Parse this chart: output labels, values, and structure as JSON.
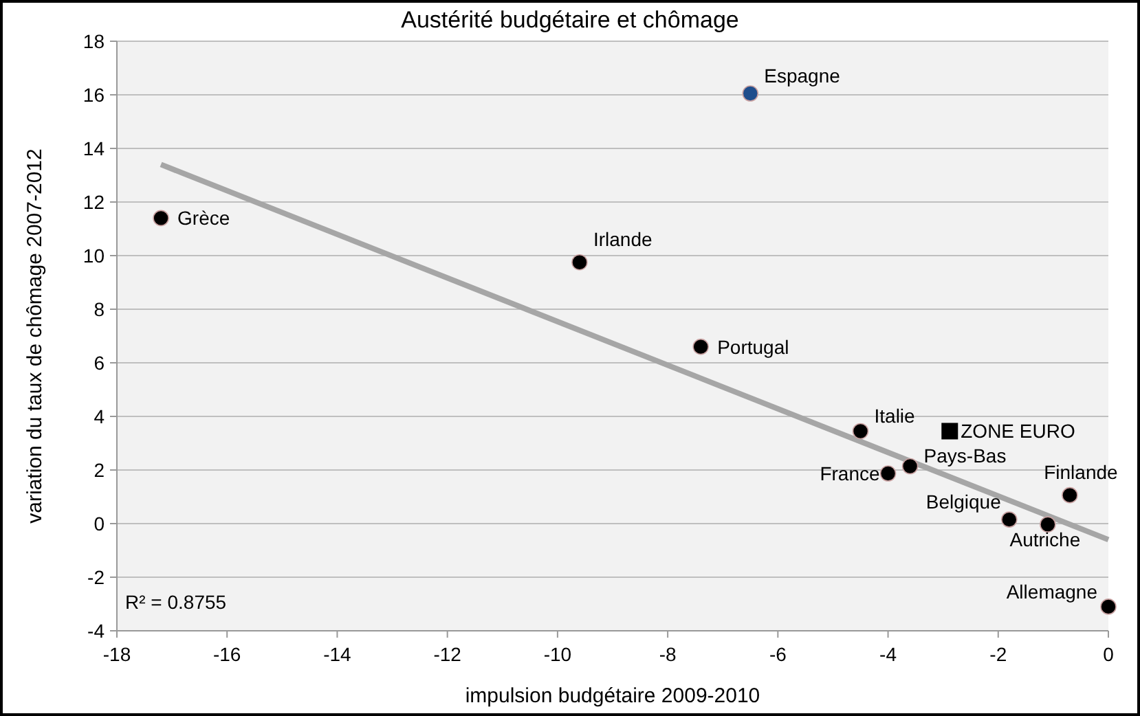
{
  "chart_data": {
    "type": "scatter",
    "title": "Austérité budgétaire et chômage",
    "xlabel": "impulsion budgétaire 2009-2010",
    "ylabel": "variation du taux de chômage 2007-2012",
    "xlim": [
      -18,
      0
    ],
    "xticks": [
      -18,
      -16,
      -14,
      -12,
      -10,
      -8,
      -6,
      -4,
      -2,
      0
    ],
    "ylim": [
      -4,
      18
    ],
    "yticks": [
      -4,
      -2,
      0,
      2,
      4,
      6,
      8,
      10,
      12,
      14,
      16,
      18
    ],
    "grid": "y",
    "marker": "circle",
    "series": [
      {
        "type": "scatter",
        "x": [
          -17.2,
          -9.6,
          -7.4,
          -6.5,
          -4.5,
          -3.6,
          -4.0,
          -0.7,
          -1.8,
          -1.1,
          0.0
        ],
        "values": [
          11.4,
          9.75,
          6.6,
          16.05,
          3.45,
          2.14,
          1.87,
          1.06,
          0.15,
          -0.03,
          -3.1
        ],
        "colors": [
          "#000000",
          "#000000",
          "#000000",
          "#1f4e8c",
          "#000000",
          "#000000",
          "#000000",
          "#000000",
          "#000000",
          "#000000",
          "#000000"
        ]
      },
      {
        "type": "scatter",
        "marker": "square",
        "x": [
          -2.88
        ],
        "values": [
          3.45
        ],
        "color": "#000000"
      },
      {
        "type": "line",
        "marker": "none",
        "x": [
          -17.2,
          0
        ],
        "values": [
          13.4,
          -0.6
        ],
        "color": "#a6a6a6"
      }
    ],
    "annotations": [
      {
        "text": "Grèce",
        "x": -17.2,
        "y": 11.4
      },
      {
        "text": "Irlande",
        "x": -9.6,
        "y": 9.75
      },
      {
        "text": "Portugal",
        "x": -7.4,
        "y": 6.6
      },
      {
        "text": "Espagne",
        "x": -6.5,
        "y": 16.05
      },
      {
        "text": "Italie",
        "x": -4.5,
        "y": 3.45
      },
      {
        "text": "Pays-Bas",
        "x": -3.6,
        "y": 2.14
      },
      {
        "text": "France",
        "x": -4.0,
        "y": 1.87
      },
      {
        "text": "Finlande",
        "x": -0.7,
        "y": 1.06
      },
      {
        "text": "Belgique",
        "x": -1.8,
        "y": 0.15
      },
      {
        "text": "Autriche",
        "x": -1.1,
        "y": -0.03
      },
      {
        "text": "Allemagne",
        "x": 0.0,
        "y": -3.1
      },
      {
        "text": "ZONE EURO",
        "x": -2.88,
        "y": 3.45
      },
      "R² = 0.8755"
    ]
  }
}
